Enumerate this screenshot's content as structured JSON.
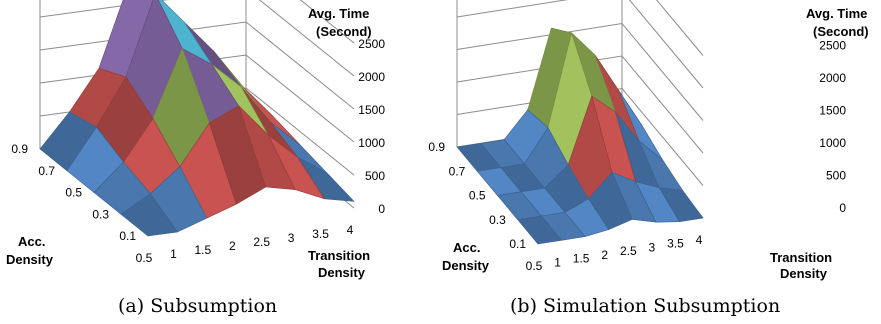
{
  "chart_data": [
    {
      "type": "surface",
      "caption": "(a) Subsumption",
      "z_axis": {
        "title_line1": "Avg. Time",
        "title_line2": "(Second)",
        "ticks": [
          "2500",
          "2000",
          "1500",
          "1000",
          "500",
          "0"
        ],
        "range": [
          0,
          2500
        ]
      },
      "y_axis": {
        "title_line1": "Acc.",
        "title_line2": "Density",
        "ticks": [
          "0.9",
          "0.7",
          "0.5",
          "0.3",
          "0.1"
        ]
      },
      "x_axis": {
        "title_line1": "Transition",
        "title_line2": "Density",
        "ticks": [
          "0.5",
          "1",
          "1.5",
          "2",
          "2.5",
          "3",
          "3.5",
          "4"
        ]
      },
      "acc_density": [
        0.1,
        0.3,
        0.5,
        0.7,
        0.9
      ],
      "transition_density": [
        0.5,
        1,
        1.5,
        2,
        2.5,
        3,
        3.5,
        4
      ],
      "z": [
        [
          0,
          0,
          150,
          300,
          500,
          400,
          200,
          100
        ],
        [
          0,
          250,
          600,
          1200,
          1400,
          900,
          500,
          200
        ],
        [
          0,
          400,
          1000,
          2000,
          1700,
          1300,
          700,
          300
        ],
        [
          0,
          600,
          1300,
          2500,
          2000,
          1500,
          900,
          400
        ],
        [
          0,
          500,
          1100,
          2300,
          1900,
          1400,
          800,
          300
        ]
      ]
    },
    {
      "type": "surface",
      "caption": "(b) Simulation Subsumption",
      "z_axis": {
        "title_line1": "Avg. Time",
        "title_line2": "(Second)",
        "ticks": [
          "2500",
          "2000",
          "1500",
          "1000",
          "500",
          "0"
        ],
        "range": [
          0,
          2500
        ]
      },
      "y_axis": {
        "title_line1": "Acc.",
        "title_line2": "Density",
        "ticks": [
          "0.9",
          "0.7",
          "0.5",
          "0.3",
          "0.1"
        ]
      },
      "x_axis": {
        "title_line1": "Transition",
        "title_line2": "Density",
        "ticks": [
          "0.5",
          "1",
          "1.5",
          "2",
          "2.5",
          "3",
          "3.5",
          "4"
        ]
      },
      "acc_density": [
        0.1,
        0.3,
        0.5,
        0.7,
        0.9
      ],
      "transition_density": [
        0.5,
        1,
        1.5,
        2,
        2.5,
        3,
        3.5,
        4
      ],
      "z": [
        [
          0,
          0,
          0,
          50,
          150,
          50,
          0,
          0
        ],
        [
          0,
          0,
          0,
          150,
          500,
          300,
          150,
          50
        ],
        [
          0,
          0,
          0,
          300,
          1300,
          1000,
          500,
          150
        ],
        [
          0,
          0,
          0,
          500,
          1900,
          1500,
          900,
          300
        ],
        [
          0,
          0,
          0,
          400,
          1600,
          1300,
          700,
          200
        ]
      ]
    }
  ],
  "colors": {
    "band_0_500": "#4f81bd",
    "band_500_1000": "#c0504d",
    "band_1000_1500": "#9bbb59",
    "band_1500_2000": "#8064a2",
    "band_2000_2500": "#4bacc6",
    "grid": "#8c8c8c"
  }
}
